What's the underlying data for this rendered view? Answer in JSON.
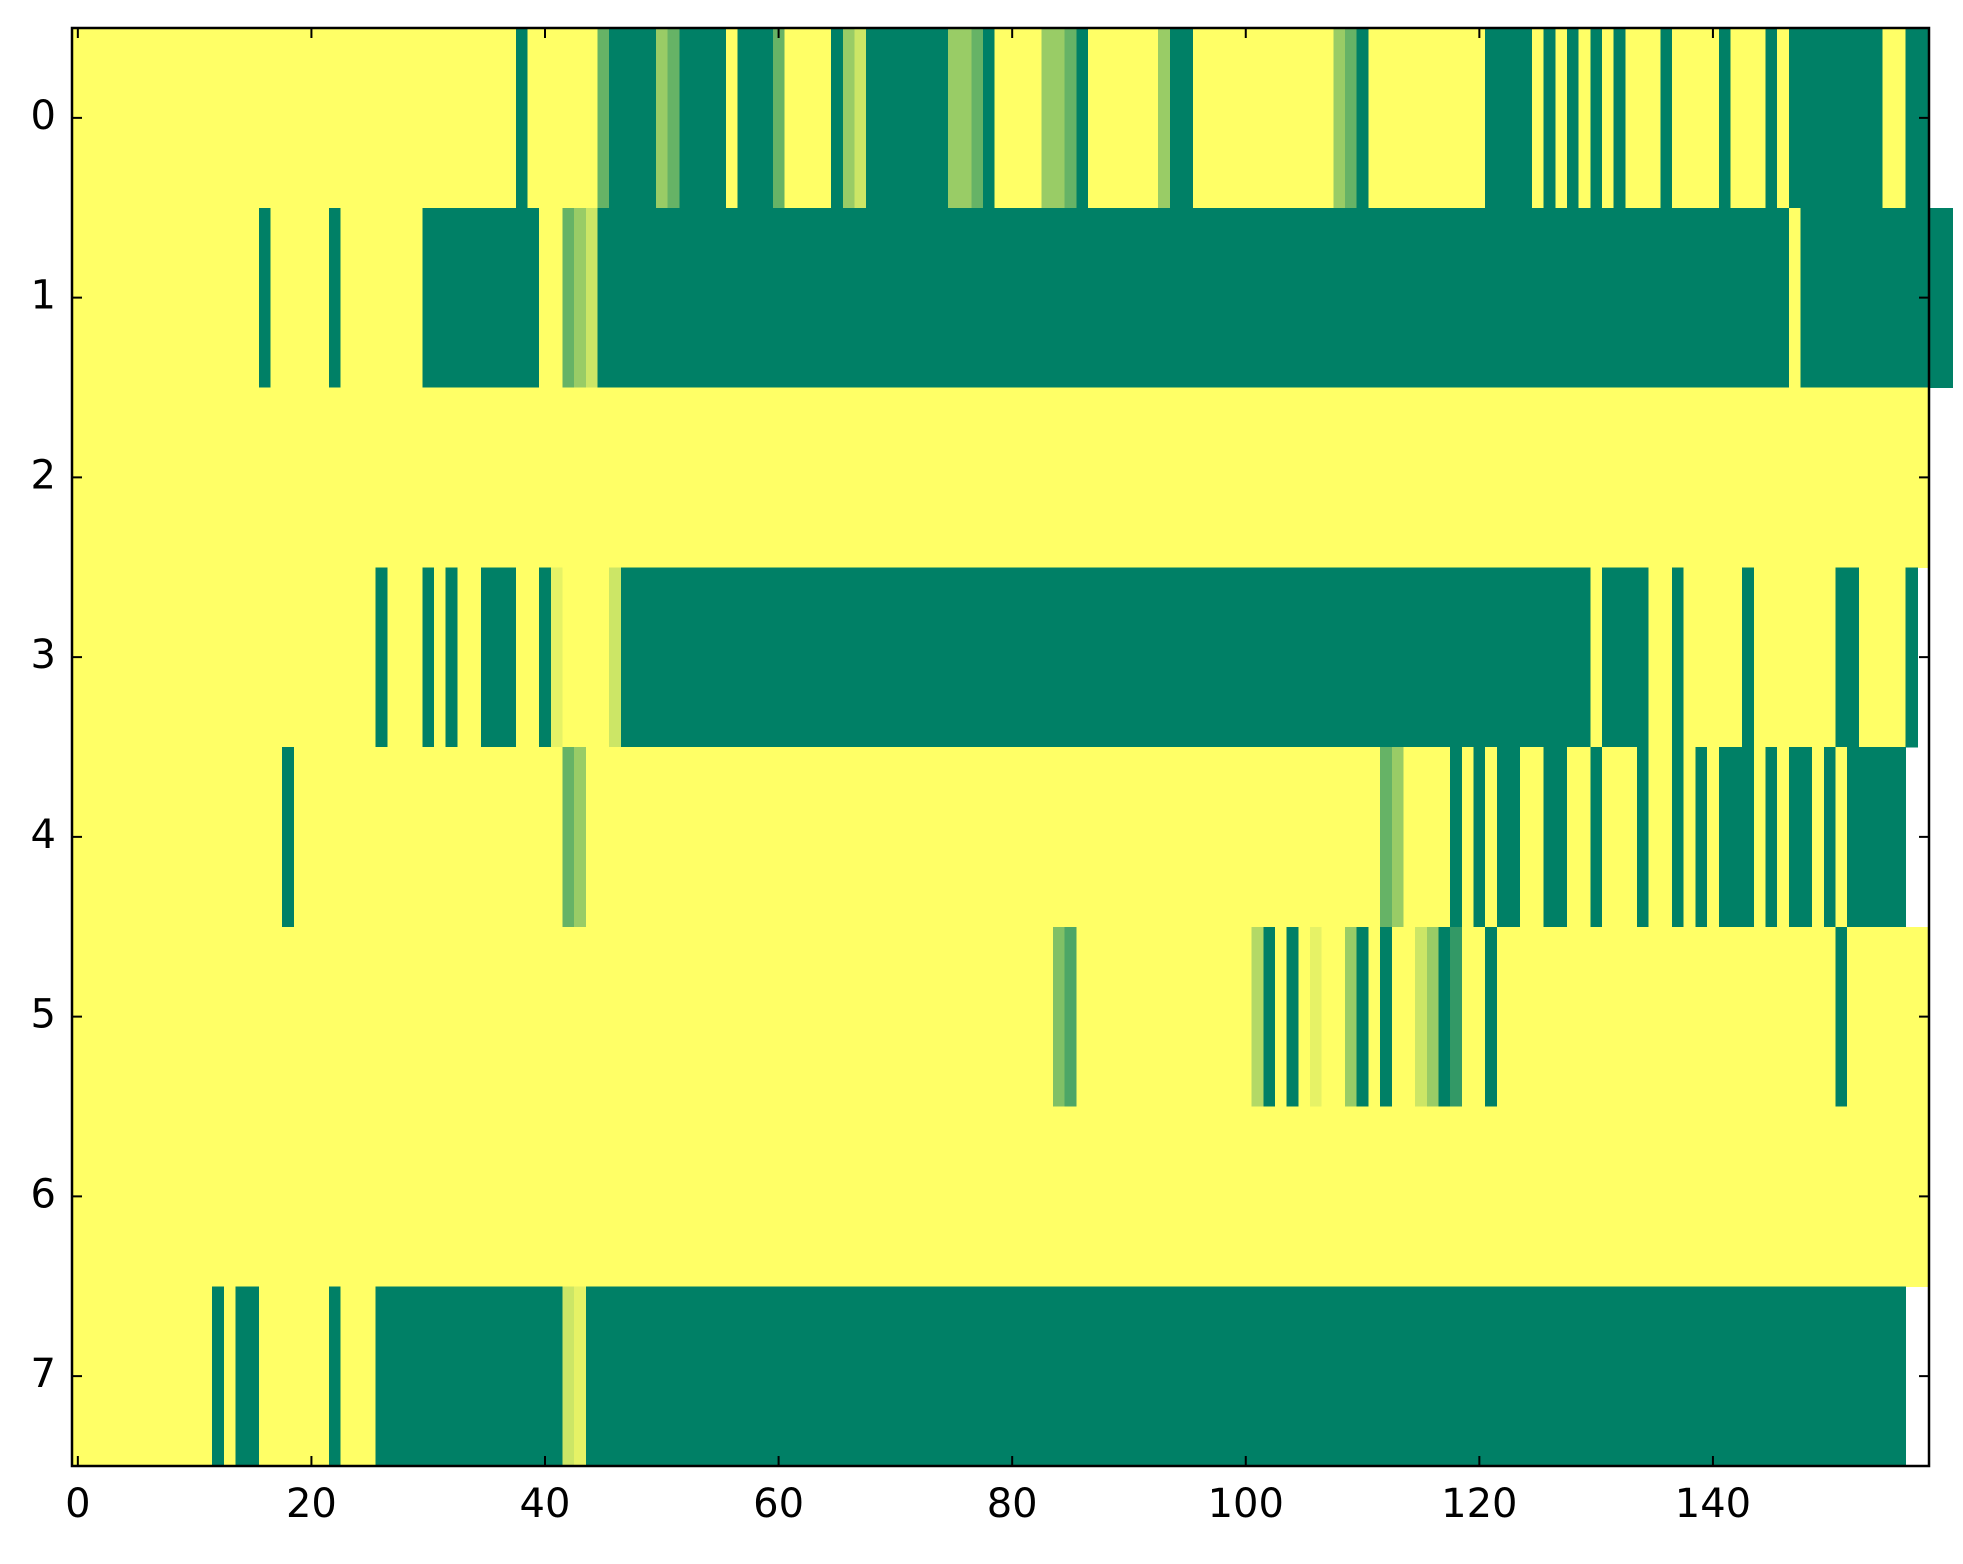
{
  "chart_data": {
    "type": "heatmap",
    "colormap": "summer",
    "clim": [
      0,
      1
    ],
    "xlim": [
      -0.5,
      158.5
    ],
    "ylim": [
      7.5,
      -0.5
    ],
    "xticks": [
      0,
      20,
      40,
      60,
      80,
      100,
      120,
      140
    ],
    "yticks": [
      0,
      1,
      2,
      3,
      4,
      5,
      6,
      7
    ],
    "z": [
      [
        1,
        1,
        1,
        1,
        1,
        1,
        1,
        1,
        1,
        1,
        1,
        1,
        1,
        1,
        1,
        1,
        1,
        1,
        1,
        1,
        1,
        1,
        1,
        1,
        1,
        1,
        1,
        1,
        1,
        1,
        1,
        1,
        1,
        1,
        1,
        1,
        1,
        1,
        0,
        1,
        1,
        1,
        1,
        1,
        1,
        0.4,
        0,
        0,
        0,
        0,
        0.6,
        0.4,
        0,
        0,
        0,
        0,
        1,
        0,
        0,
        0,
        0.4,
        1,
        1,
        1,
        1,
        0,
        0.6,
        0.8,
        0,
        0,
        0,
        0,
        0,
        0,
        0,
        0.6,
        0.6,
        0.4,
        0,
        1,
        1,
        1,
        1,
        0.6,
        0.6,
        0.4,
        0,
        1,
        1,
        1,
        1,
        1,
        1,
        0.6,
        0,
        0,
        1,
        1,
        1,
        1,
        1,
        1,
        1,
        1,
        1,
        1,
        1,
        1,
        0.6,
        0.4,
        0,
        1,
        1,
        1,
        1,
        1,
        1,
        1,
        1,
        1,
        1,
        0,
        0,
        0,
        0,
        1,
        0,
        1,
        0,
        1,
        0,
        1,
        0,
        1,
        1,
        1,
        0,
        1,
        1,
        1,
        1,
        0,
        1,
        1,
        1,
        0,
        1,
        0,
        0,
        0,
        0,
        0,
        0,
        0,
        0,
        1,
        1,
        0,
        0
      ],
      [
        1,
        1,
        1,
        1,
        1,
        1,
        1,
        1,
        1,
        1,
        1,
        1,
        1,
        1,
        1,
        1,
        0,
        1,
        1,
        1,
        1,
        1,
        0,
        1,
        1,
        1,
        1,
        1,
        1,
        1,
        0,
        0,
        0,
        0,
        0,
        0,
        0,
        0,
        0,
        0,
        1,
        1,
        0.4,
        0.6,
        0.8,
        0,
        0,
        0,
        0,
        0,
        0,
        0,
        0,
        0,
        0,
        0,
        0,
        0,
        0,
        0,
        0,
        0,
        0,
        0,
        0,
        0,
        0,
        0,
        0,
        0,
        0,
        0,
        0,
        0,
        0,
        0,
        0,
        0,
        0,
        0,
        0,
        0,
        0,
        0,
        0,
        0,
        0,
        0,
        0,
        0,
        0,
        0,
        0,
        0,
        0,
        0,
        0,
        0,
        0,
        0,
        0,
        0,
        0,
        0,
        0,
        0,
        0,
        0,
        0,
        0,
        0,
        0,
        0,
        0,
        0,
        0,
        0,
        0,
        0,
        0,
        0,
        0,
        0,
        0,
        0,
        0,
        0,
        0,
        0,
        0,
        0,
        0,
        0,
        0,
        0,
        0,
        0,
        0,
        0,
        0,
        0,
        0,
        0,
        0,
        0,
        0,
        0,
        1,
        0,
        0,
        0,
        0,
        0,
        0,
        0,
        0,
        0,
        0,
        0,
        0,
        0
      ],
      [
        1,
        1,
        1,
        1,
        1,
        1,
        1,
        1,
        1,
        1,
        1,
        1,
        1,
        1,
        1,
        1,
        1,
        1,
        1,
        1,
        1,
        1,
        1,
        1,
        1,
        1,
        1,
        1,
        1,
        1,
        1,
        1,
        1,
        1,
        1,
        1,
        1,
        1,
        1,
        1,
        1,
        1,
        1,
        1,
        1,
        1,
        1,
        1,
        1,
        1,
        1,
        1,
        1,
        1,
        1,
        1,
        1,
        1,
        1,
        1,
        1,
        1,
        1,
        1,
        1,
        1,
        1,
        1,
        1,
        1,
        1,
        1,
        1,
        1,
        1,
        1,
        1,
        1,
        1,
        1,
        1,
        1,
        1,
        1,
        1,
        1,
        1,
        1,
        1,
        1,
        1,
        1,
        1,
        1,
        1,
        1,
        1,
        1,
        1,
        1,
        1,
        1,
        1,
        1,
        1,
        1,
        1,
        1,
        1,
        1,
        1,
        1,
        1,
        1,
        1,
        1,
        1,
        1,
        1,
        1,
        1,
        1,
        1,
        1,
        1,
        1,
        1,
        1,
        1,
        1,
        1,
        1,
        1,
        1,
        1,
        1,
        1,
        1,
        1,
        1,
        1,
        1,
        1,
        1,
        1,
        1,
        1,
        1,
        1,
        1,
        1,
        1,
        1,
        1,
        1,
        1,
        1,
        1,
        1
      ],
      [
        1,
        1,
        1,
        1,
        1,
        1,
        1,
        1,
        1,
        1,
        1,
        1,
        1,
        1,
        1,
        1,
        1,
        1,
        1,
        1,
        1,
        1,
        1,
        1,
        1,
        1,
        0,
        1,
        1,
        1,
        0,
        1,
        0,
        1,
        1,
        0,
        0,
        0,
        1,
        1,
        0,
        0.9,
        1,
        1,
        1,
        1,
        0.8,
        0,
        0,
        0,
        0,
        0,
        0,
        0,
        0,
        0,
        0,
        0,
        0,
        0,
        0,
        0,
        0,
        0,
        0,
        0,
        0,
        0,
        0,
        0,
        0,
        0,
        0,
        0,
        0,
        0,
        0,
        0,
        0,
        0,
        0,
        0,
        0,
        0,
        0,
        0,
        0,
        0,
        0,
        0,
        0,
        0,
        0,
        0,
        0,
        0,
        0,
        0,
        0,
        0,
        0,
        0,
        0,
        0,
        0,
        0,
        0,
        0,
        0,
        0,
        0,
        0,
        0,
        0,
        0,
        0,
        0,
        0,
        0,
        0,
        0,
        0,
        0,
        0,
        0,
        0,
        0,
        0,
        0,
        0,
        1,
        0,
        0,
        0,
        0,
        1,
        1,
        0,
        1,
        1,
        1,
        1,
        1,
        0,
        1,
        1,
        1,
        1,
        1,
        1,
        1,
        0,
        0,
        1,
        1,
        1,
        1,
        0
      ],
      [
        1,
        1,
        1,
        1,
        1,
        1,
        1,
        1,
        1,
        1,
        1,
        1,
        1,
        1,
        1,
        1,
        1,
        1,
        0,
        1,
        1,
        1,
        1,
        1,
        1,
        1,
        1,
        1,
        1,
        1,
        1,
        1,
        1,
        1,
        1,
        1,
        1,
        1,
        1,
        1,
        1,
        1,
        0.4,
        0.6,
        1,
        1,
        1,
        1,
        1,
        1,
        1,
        1,
        1,
        1,
        1,
        1,
        1,
        1,
        1,
        1,
        1,
        1,
        1,
        1,
        1,
        1,
        1,
        1,
        1,
        1,
        1,
        1,
        1,
        1,
        1,
        1,
        1,
        1,
        1,
        1,
        1,
        1,
        1,
        1,
        1,
        1,
        1,
        1,
        1,
        1,
        1,
        1,
        1,
        1,
        1,
        1,
        1,
        1,
        1,
        1,
        1,
        1,
        1,
        1,
        1,
        1,
        1,
        1,
        1,
        1,
        1,
        1,
        0.4,
        0.6,
        1,
        1,
        1,
        1,
        0,
        1,
        0,
        1,
        0,
        0,
        1,
        1,
        0,
        0,
        1,
        1,
        0,
        1,
        1,
        1,
        0,
        1,
        1,
        0,
        1,
        0,
        1,
        0,
        0,
        0,
        1,
        0,
        1,
        0,
        0,
        1,
        0,
        1,
        0,
        0,
        0,
        0,
        0
      ],
      [
        1,
        1,
        1,
        1,
        1,
        1,
        1,
        1,
        1,
        1,
        1,
        1,
        1,
        1,
        1,
        1,
        1,
        1,
        1,
        1,
        1,
        1,
        1,
        1,
        1,
        1,
        1,
        1,
        1,
        1,
        1,
        1,
        1,
        1,
        1,
        1,
        1,
        1,
        1,
        1,
        1,
        1,
        1,
        1,
        1,
        1,
        1,
        1,
        1,
        1,
        1,
        1,
        1,
        1,
        1,
        1,
        1,
        1,
        1,
        1,
        1,
        1,
        1,
        1,
        1,
        1,
        1,
        1,
        1,
        1,
        1,
        1,
        1,
        1,
        1,
        1,
        1,
        1,
        1,
        1,
        1,
        1,
        1,
        1,
        0.5,
        0.3,
        1,
        1,
        1,
        1,
        1,
        1,
        1,
        1,
        1,
        1,
        1,
        1,
        1,
        1,
        1,
        0.7,
        0,
        1,
        0,
        1,
        0.9,
        1,
        1,
        0.6,
        0,
        1,
        0,
        1,
        1,
        0.8,
        0.6,
        0,
        0.2,
        1,
        1,
        0,
        1,
        1,
        1,
        1,
        1,
        1,
        1,
        1,
        1,
        1,
        1,
        1,
        1,
        1,
        1,
        1,
        1,
        1,
        1,
        1,
        1,
        1,
        1,
        1,
        1,
        1,
        1,
        1,
        1,
        0,
        1,
        1,
        1,
        1,
        1,
        1,
        1
      ],
      [
        1,
        1,
        1,
        1,
        1,
        1,
        1,
        1,
        1,
        1,
        1,
        1,
        1,
        1,
        1,
        1,
        1,
        1,
        1,
        1,
        1,
        1,
        1,
        1,
        1,
        1,
        1,
        1,
        1,
        1,
        1,
        1,
        1,
        1,
        1,
        1,
        1,
        1,
        1,
        1,
        1,
        1,
        1,
        1,
        1,
        1,
        1,
        1,
        1,
        1,
        1,
        1,
        1,
        1,
        1,
        1,
        1,
        1,
        1,
        1,
        1,
        1,
        1,
        1,
        1,
        1,
        1,
        1,
        1,
        1,
        1,
        1,
        1,
        1,
        1,
        1,
        1,
        1,
        1,
        1,
        1,
        1,
        1,
        1,
        1,
        1,
        1,
        1,
        1,
        1,
        1,
        1,
        1,
        1,
        1,
        1,
        1,
        1,
        1,
        1,
        1,
        1,
        1,
        1,
        1,
        1,
        1,
        1,
        1,
        1,
        1,
        1,
        1,
        1,
        1,
        1,
        1,
        1,
        1,
        1,
        1,
        1,
        1,
        1,
        1,
        1,
        1,
        1,
        1,
        1,
        1,
        1,
        1,
        1,
        1,
        1,
        1,
        1,
        1,
        1,
        1,
        1,
        1,
        1,
        1,
        1,
        1,
        1,
        1,
        1,
        1,
        1,
        1,
        1,
        1,
        1,
        1,
        1,
        1
      ],
      [
        1,
        1,
        1,
        1,
        1,
        1,
        1,
        1,
        1,
        1,
        1,
        1,
        0,
        1,
        0,
        0,
        1,
        1,
        1,
        1,
        1,
        1,
        0,
        1,
        1,
        1,
        0,
        0,
        0,
        0,
        0,
        0,
        0,
        0,
        0,
        0,
        0,
        0,
        0,
        0,
        0,
        0,
        0.8,
        0.9,
        0,
        0,
        0,
        0,
        0,
        0,
        0,
        0,
        0,
        0,
        0,
        0,
        0,
        0,
        0,
        0,
        0,
        0,
        0,
        0,
        0,
        0,
        0,
        0,
        0,
        0,
        0,
        0,
        0,
        0,
        0,
        0,
        0,
        0,
        0,
        0,
        0,
        0,
        0,
        0,
        0,
        0,
        0,
        0,
        0,
        0,
        0,
        0,
        0,
        0,
        0,
        0,
        0,
        0,
        0,
        0,
        0,
        0,
        0,
        0,
        0,
        0,
        0,
        0,
        0,
        0,
        0,
        0,
        0,
        0,
        0,
        0,
        0,
        0,
        0,
        0,
        0,
        0,
        0,
        0,
        0,
        0,
        0,
        0,
        0,
        0,
        0,
        0,
        0,
        0,
        0,
        0,
        0,
        0,
        0,
        0,
        0,
        0,
        0,
        0,
        0,
        0,
        0,
        0,
        0,
        0,
        0,
        0,
        0,
        0,
        0,
        0,
        0
      ]
    ]
  }
}
